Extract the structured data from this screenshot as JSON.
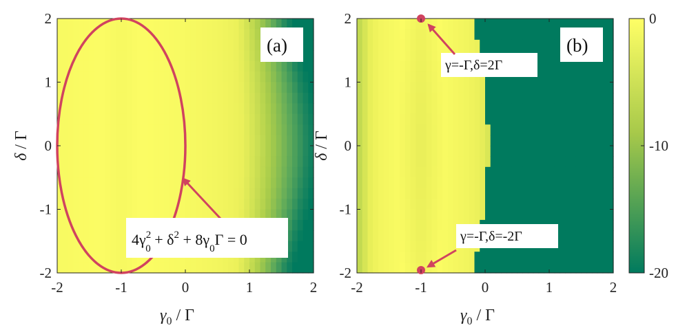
{
  "colors": {
    "ellipse": "#d0435f",
    "arrow": "#d0435f",
    "colormap_high": "#ffff66",
    "colormap_low": "#007a5e"
  },
  "chart_data": [
    {
      "type": "heatmap",
      "panel_label": "(a)",
      "xlabel_parts": [
        "γ",
        "0",
        " / Γ"
      ],
      "ylabel_parts": [
        "δ",
        " / Γ"
      ],
      "xlim": [
        -2,
        2
      ],
      "ylim": [
        -2,
        2
      ],
      "xticks": [
        "-2",
        "-1",
        "0",
        "1",
        "2"
      ],
      "yticks": [
        "-2",
        "-1",
        "0",
        "1",
        "2"
      ],
      "value_model": "bright near γ0 = -1, darkening toward γ0 = 2 at the corners",
      "annotation": {
        "curve": "ellipse centered at (-1, 0) with semi-axes 1 (x) and 2 (y)",
        "equation_parts": [
          "4γ",
          "2",
          "0",
          " + δ",
          "2",
          " + 8γ",
          "0",
          "Γ = 0"
        ],
        "arrow_tip": [
          0,
          -0.5
        ]
      }
    },
    {
      "type": "heatmap",
      "panel_label": "(b)",
      "xlabel_parts": [
        "γ",
        "0",
        " / Γ"
      ],
      "ylabel_parts": [
        "δ",
        " / Γ"
      ],
      "xlim": [
        -2,
        2
      ],
      "ylim": [
        -2,
        2
      ],
      "xticks": [
        "-2",
        "-1",
        "0",
        "1",
        "2"
      ],
      "yticks": [
        "-2",
        "-1",
        "0",
        "1",
        "2"
      ],
      "value_model": "bright band around γ0 = -1, saturating to -20 for γ0 > 0",
      "points": [
        {
          "x": -1,
          "y": 2,
          "label": "γ=-Γ,δ=2Γ"
        },
        {
          "x": -1,
          "y": -2,
          "label": "γ=-Γ,δ=-2Γ"
        }
      ]
    }
  ],
  "colorbar": {
    "range": [
      -20,
      0
    ],
    "ticks": [
      "0",
      "-10",
      "-20"
    ]
  }
}
